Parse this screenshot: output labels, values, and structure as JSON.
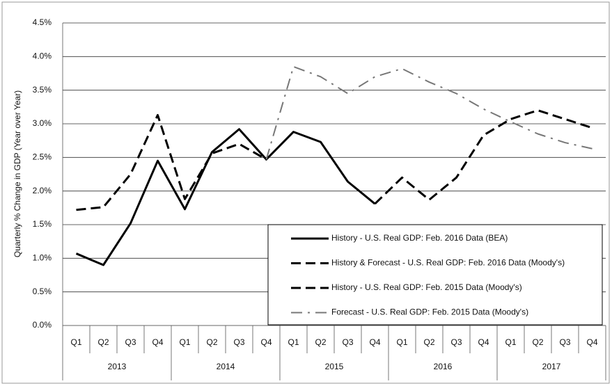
{
  "chart_data": {
    "type": "line",
    "y_axis_label": "Quarterly % Change in GDP (Year over Year)",
    "categories": [
      "Q1",
      "Q2",
      "Q3",
      "Q4",
      "Q1",
      "Q2",
      "Q3",
      "Q4",
      "Q1",
      "Q2",
      "Q3",
      "Q4",
      "Q1",
      "Q2",
      "Q3",
      "Q4",
      "Q1",
      "Q2",
      "Q3",
      "Q4"
    ],
    "year_groups": [
      "2013",
      "2014",
      "2015",
      "2016",
      "2017"
    ],
    "ylim": [
      0,
      4.5
    ],
    "yticks": [
      {
        "value": 0,
        "label": "0.0%"
      },
      {
        "value": 0.5,
        "label": "0.5%"
      },
      {
        "value": 1,
        "label": "1.0%"
      },
      {
        "value": 1.5,
        "label": "1.5%"
      },
      {
        "value": 2,
        "label": "2.0%"
      },
      {
        "value": 2.5,
        "label": "2.5%"
      },
      {
        "value": 3,
        "label": "3.0%"
      },
      {
        "value": 3.5,
        "label": "3.5%"
      },
      {
        "value": 4,
        "label": "4.0%"
      },
      {
        "value": 4.5,
        "label": "4.5%"
      }
    ],
    "grid": true,
    "series": [
      {
        "name": "History - U.S. Real GDP: Feb. 2016 Data (BEA)",
        "color": "#000000",
        "dash": "solid",
        "values": [
          1.07,
          0.9,
          1.52,
          2.45,
          1.73,
          2.58,
          2.92,
          2.47,
          2.88,
          2.73,
          2.14,
          1.81,
          null,
          null,
          null,
          null,
          null,
          null,
          null,
          null
        ]
      },
      {
        "name": "History & Forecast - U.S. Real GDP: Feb. 2016 Data (Moody's)",
        "color": "#000000",
        "dash": "dashed",
        "values": [
          null,
          null,
          null,
          null,
          null,
          null,
          null,
          null,
          null,
          null,
          null,
          1.81,
          2.2,
          1.87,
          2.2,
          2.83,
          3.07,
          3.2,
          3.07,
          2.94
        ]
      },
      {
        "name": "History - U.S. Real GDP: Feb. 2015 Data (Moody's)",
        "color": "#000000",
        "dash": "dashed",
        "values": [
          1.72,
          1.76,
          2.25,
          3.13,
          1.88,
          2.56,
          2.7,
          2.47,
          null,
          null,
          null,
          null,
          null,
          null,
          null,
          null,
          null,
          null,
          null,
          null
        ]
      },
      {
        "name": "Forecast - U.S. Real GDP: Feb. 2015 Data (Moody's)",
        "color": "#000000",
        "dash": "dashdot",
        "values": [
          null,
          null,
          null,
          null,
          null,
          null,
          null,
          2.47,
          3.85,
          3.7,
          3.45,
          3.7,
          3.82,
          3.62,
          3.45,
          3.22,
          3.03,
          2.85,
          2.72,
          2.63
        ]
      }
    ]
  }
}
